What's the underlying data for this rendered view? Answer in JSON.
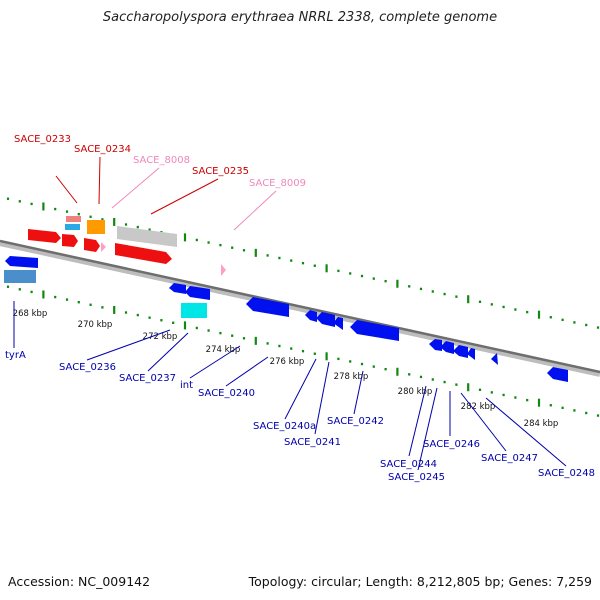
{
  "title": "Saccharopolyspora erythraea NRRL 2338, complete genome",
  "footer": {
    "accession": "Accession: NC_009142",
    "topology": "Topology: circular; Length: 8,212,805 bp; Genes: 7,259"
  },
  "colors": {
    "forward_gene": "#ff1f1f",
    "reverse_gene": "#1a2fff",
    "forward_label": "#cc0000",
    "reverse_label": "#0000aa",
    "pseudo_label": "#ee88bb",
    "axis": "#888888",
    "tick": "#118811"
  },
  "scale_labels": [
    "268 kbp",
    "270 kbp",
    "272 kbp",
    "274 kbp",
    "276 kbp",
    "278 kbp",
    "280 kbp",
    "282 kbp",
    "284 kbp"
  ],
  "forward_labels": [
    {
      "text": "SACE_0233",
      "kind": "gene"
    },
    {
      "text": "SACE_0234",
      "kind": "gene"
    },
    {
      "text": "SACE_8008",
      "kind": "pseudo"
    },
    {
      "text": "SACE_0235",
      "kind": "gene"
    },
    {
      "text": "SACE_8009",
      "kind": "pseudo"
    }
  ],
  "reverse_labels": [
    {
      "text": "tyrA"
    },
    {
      "text": "SACE_0236"
    },
    {
      "text": "SACE_0237"
    },
    {
      "text": "int"
    },
    {
      "text": "SACE_0240"
    },
    {
      "text": "SACE_0240a"
    },
    {
      "text": "SACE_0241"
    },
    {
      "text": "SACE_0242"
    },
    {
      "text": "SACE_0244"
    },
    {
      "text": "SACE_0245"
    },
    {
      "text": "SACE_0246"
    },
    {
      "text": "SACE_0247"
    },
    {
      "text": "SACE_0248"
    }
  ]
}
